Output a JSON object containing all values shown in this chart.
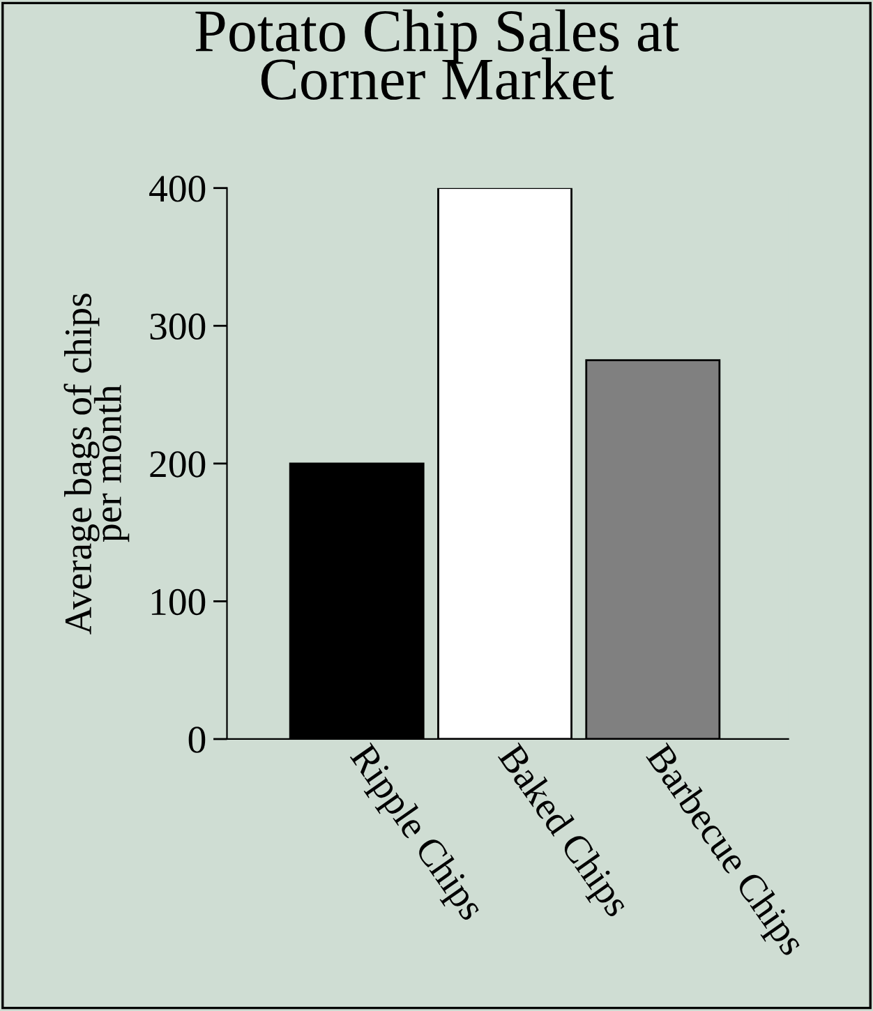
{
  "chart_data": {
    "type": "bar",
    "title": "Potato Chip Sales at\nCorner Market",
    "ylabel": "Average bags of chips\nper month",
    "categories": [
      "Ripple Chips",
      "Baked Chips",
      "Barbecue Chips"
    ],
    "values": [
      200,
      400,
      275
    ],
    "colors": [
      "#000000",
      "#ffffff",
      "#808080"
    ],
    "ylim": [
      0,
      400
    ],
    "yticks": [
      0,
      100,
      200,
      300,
      400
    ],
    "grid": false,
    "legend": false
  }
}
